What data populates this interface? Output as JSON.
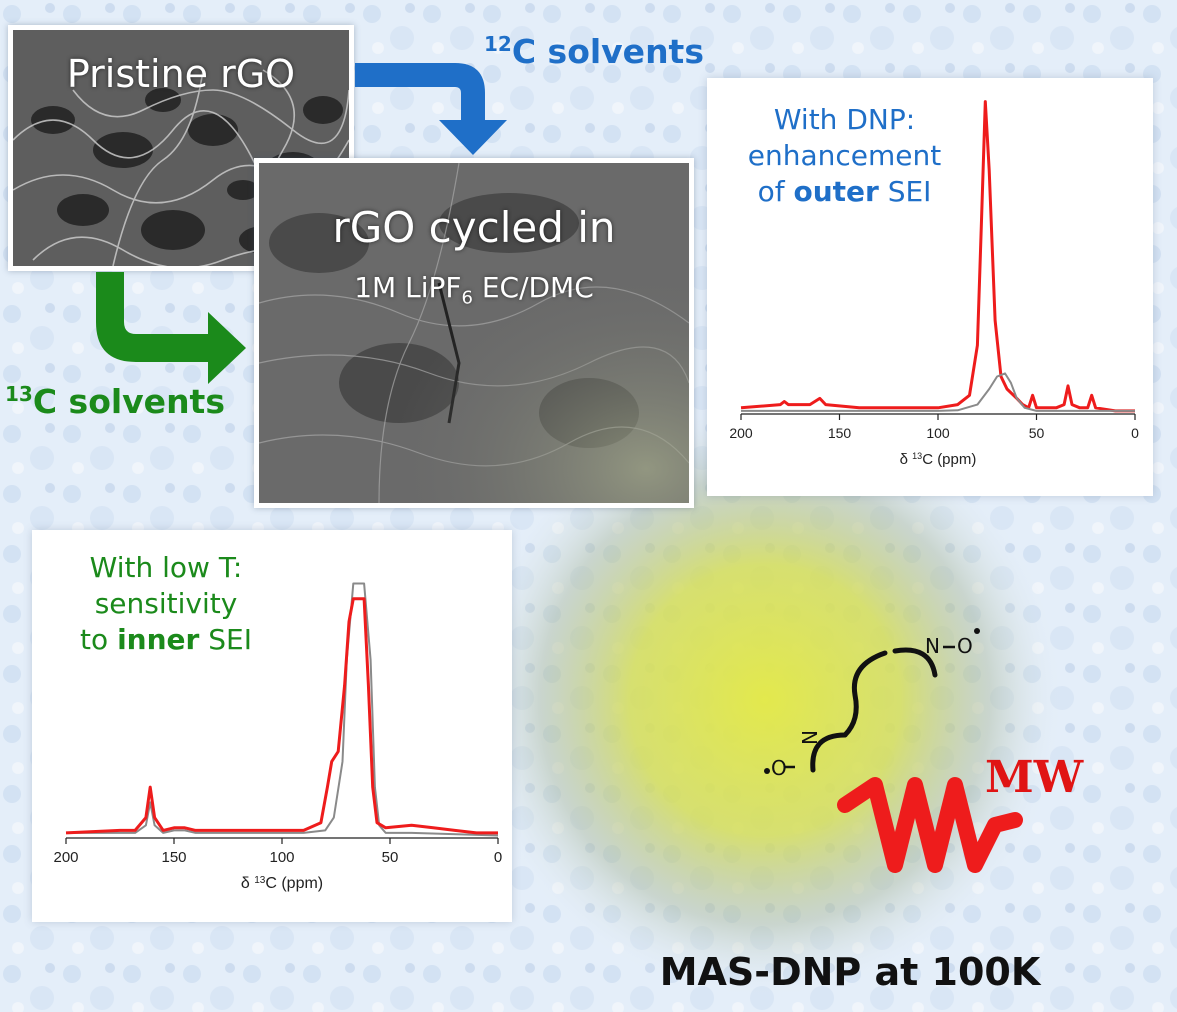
{
  "colors": {
    "blue": "#1f6fc8",
    "green": "#1b8a1b",
    "red_series": "#ee1c1c",
    "gray_series": "#8a8a8a",
    "mw_red": "#e01414",
    "halo": "#d9e24a"
  },
  "images": {
    "pristine": {
      "title": "Pristine rGO"
    },
    "cycled": {
      "title_line1": "rGO cycled in",
      "title_line2": "1M LiPF",
      "title_subscript": "6",
      "title_line2_tail": " EC/DMC"
    }
  },
  "arrows": {
    "c12": {
      "mass": "12",
      "text": "C solvents"
    },
    "c13": {
      "mass": "13",
      "text": "C solvents"
    }
  },
  "notes": {
    "dnp": {
      "line1": "With DNP:",
      "line2": "enhancement",
      "line3_pre": "of ",
      "line3_bold": "outer",
      "line3_post": " SEI"
    },
    "lowT": {
      "line1": "With low T:",
      "line2": "sensitivity",
      "line3_pre": "to ",
      "line3_bold": "inner",
      "line3_post": " SEI"
    }
  },
  "molecule": {
    "icon": "biradical-icon",
    "atoms": [
      "N",
      "O",
      "N",
      "O"
    ]
  },
  "microwave": {
    "icon": "microwave-wave-icon",
    "label": "MW"
  },
  "bottom_title": "MAS-DNP at 100K",
  "chart_data": [
    {
      "type": "line",
      "xlabel_prefix": "δ ",
      "xlabel_mass": "13",
      "xlabel_tail": "C (ppm)",
      "xlim": [
        200,
        0
      ],
      "ylim": [
        0,
        1.05
      ],
      "xticks": [
        200,
        150,
        100,
        50,
        0
      ],
      "series": [
        {
          "color_key": "red_series",
          "points": [
            [
              200,
              0.02
            ],
            [
              180,
              0.03
            ],
            [
              178,
              0.04
            ],
            [
              176,
              0.03
            ],
            [
              165,
              0.03
            ],
            [
              160,
              0.05
            ],
            [
              157,
              0.03
            ],
            [
              140,
              0.02
            ],
            [
              120,
              0.02
            ],
            [
              100,
              0.02
            ],
            [
              90,
              0.03
            ],
            [
              84,
              0.06
            ],
            [
              80,
              0.22
            ],
            [
              78,
              0.6
            ],
            [
              76,
              1.0
            ],
            [
              74,
              0.78
            ],
            [
              71,
              0.3
            ],
            [
              68,
              0.12
            ],
            [
              65,
              0.08
            ],
            [
              60,
              0.05
            ],
            [
              57,
              0.03
            ],
            [
              54,
              0.02
            ],
            [
              52,
              0.06
            ],
            [
              50,
              0.02
            ],
            [
              46,
              0.02
            ],
            [
              40,
              0.02
            ],
            [
              36,
              0.03
            ],
            [
              34,
              0.09
            ],
            [
              32,
              0.03
            ],
            [
              28,
              0.02
            ],
            [
              24,
              0.02
            ],
            [
              22,
              0.06
            ],
            [
              20,
              0.02
            ],
            [
              10,
              0.01
            ],
            [
              0,
              0.01
            ]
          ]
        },
        {
          "color_key": "gray_series",
          "points": [
            [
              200,
              0.01
            ],
            [
              150,
              0.01
            ],
            [
              100,
              0.01
            ],
            [
              90,
              0.012
            ],
            [
              80,
              0.03
            ],
            [
              74,
              0.08
            ],
            [
              70,
              0.12
            ],
            [
              66,
              0.13
            ],
            [
              63,
              0.1
            ],
            [
              60,
              0.05
            ],
            [
              56,
              0.02
            ],
            [
              50,
              0.01
            ],
            [
              0,
              0.01
            ]
          ]
        }
      ]
    },
    {
      "type": "line",
      "xlabel_prefix": "δ ",
      "xlabel_mass": "13",
      "xlabel_tail": "C (ppm)",
      "xlim": [
        200,
        0
      ],
      "ylim": [
        0,
        1.1
      ],
      "xticks": [
        200,
        150,
        100,
        50,
        0
      ],
      "series": [
        {
          "color_key": "gray_series",
          "points": [
            [
              200,
              0.02
            ],
            [
              175,
              0.02
            ],
            [
              168,
              0.02
            ],
            [
              163,
              0.05
            ],
            [
              161,
              0.14
            ],
            [
              159,
              0.05
            ],
            [
              155,
              0.02
            ],
            [
              150,
              0.03
            ],
            [
              145,
              0.03
            ],
            [
              140,
              0.02
            ],
            [
              100,
              0.02
            ],
            [
              90,
              0.02
            ],
            [
              80,
              0.03
            ],
            [
              76,
              0.08
            ],
            [
              72,
              0.3
            ],
            [
              70,
              0.7
            ],
            [
              67,
              1.0
            ],
            [
              62,
              1.0
            ],
            [
              59,
              0.7
            ],
            [
              57,
              0.2
            ],
            [
              55,
              0.05
            ],
            [
              52,
              0.02
            ],
            [
              40,
              0.02
            ],
            [
              0,
              0.01
            ]
          ]
        },
        {
          "color_key": "red_series",
          "points": [
            [
              200,
              0.02
            ],
            [
              175,
              0.03
            ],
            [
              168,
              0.03
            ],
            [
              163,
              0.08
            ],
            [
              161,
              0.2
            ],
            [
              159,
              0.08
            ],
            [
              155,
              0.03
            ],
            [
              150,
              0.04
            ],
            [
              145,
              0.04
            ],
            [
              140,
              0.03
            ],
            [
              120,
              0.03
            ],
            [
              100,
              0.03
            ],
            [
              90,
              0.03
            ],
            [
              82,
              0.06
            ],
            [
              79,
              0.2
            ],
            [
              77,
              0.3
            ],
            [
              74,
              0.34
            ],
            [
              71,
              0.6
            ],
            [
              69,
              0.85
            ],
            [
              67,
              0.94
            ],
            [
              62,
              0.94
            ],
            [
              60,
              0.6
            ],
            [
              58,
              0.2
            ],
            [
              56,
              0.06
            ],
            [
              52,
              0.04
            ],
            [
              40,
              0.05
            ],
            [
              30,
              0.04
            ],
            [
              20,
              0.03
            ],
            [
              10,
              0.02
            ],
            [
              0,
              0.02
            ]
          ]
        }
      ]
    }
  ]
}
